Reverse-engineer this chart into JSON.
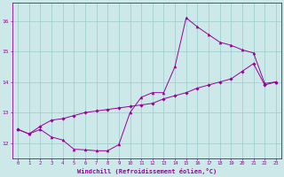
{
  "xlabel": "Windchill (Refroidissement éolien,°C)",
  "bg_color": "#cce8e8",
  "line_color": "#990099",
  "xlim": [
    -0.5,
    23.5
  ],
  "ylim": [
    11.5,
    16.6
  ],
  "xticks": [
    0,
    1,
    2,
    3,
    4,
    5,
    6,
    7,
    8,
    9,
    10,
    11,
    12,
    13,
    14,
    15,
    16,
    17,
    18,
    19,
    20,
    21,
    22,
    23
  ],
  "yticks": [
    12,
    13,
    14,
    15,
    16
  ],
  "grid_color": "#99cccc",
  "series1_x": [
    0,
    1,
    2,
    3,
    4,
    5,
    6,
    7,
    8,
    9,
    10,
    11,
    12,
    13,
    14,
    15,
    16,
    17,
    18,
    19,
    20,
    21,
    22,
    23
  ],
  "series1_y": [
    12.45,
    12.3,
    12.45,
    12.2,
    12.1,
    11.8,
    11.78,
    11.75,
    11.75,
    11.95,
    13.0,
    13.5,
    13.65,
    13.65,
    14.5,
    16.1,
    15.8,
    15.55,
    15.3,
    15.2,
    15.05,
    14.95,
    13.95,
    14.0
  ],
  "series2_x": [
    0,
    1,
    2,
    3,
    4,
    5,
    6,
    7,
    8,
    9,
    10,
    11,
    12,
    13,
    14,
    15,
    16,
    17,
    18,
    19,
    20,
    21,
    22,
    23
  ],
  "series2_y": [
    12.45,
    12.3,
    12.55,
    12.75,
    12.8,
    12.9,
    13.0,
    13.05,
    13.1,
    13.15,
    13.2,
    13.25,
    13.3,
    13.45,
    13.55,
    13.65,
    13.8,
    13.9,
    14.0,
    14.1,
    14.35,
    14.6,
    13.9,
    14.0
  ]
}
